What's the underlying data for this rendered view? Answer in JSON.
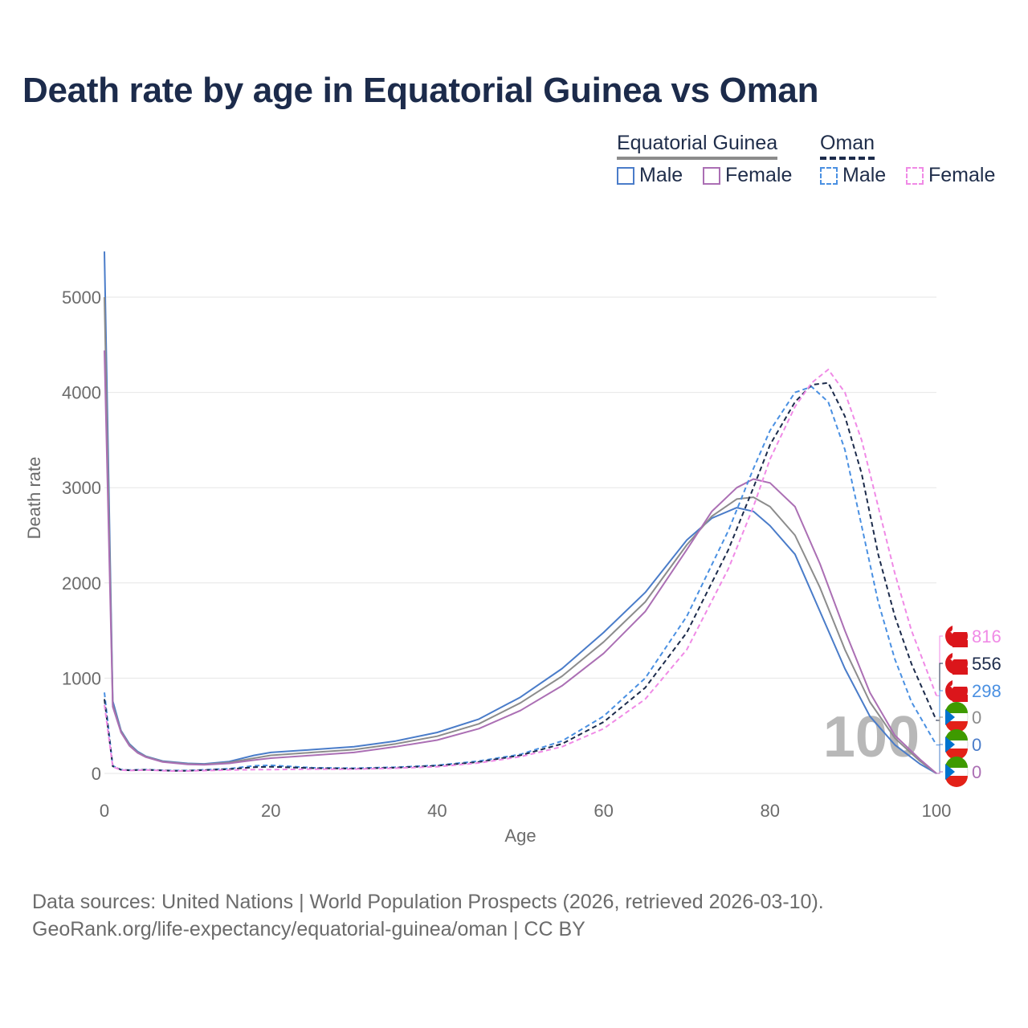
{
  "title": "Death rate by age in Equatorial Guinea vs Oman",
  "legend": {
    "groups": [
      {
        "name": "Equatorial Guinea",
        "style": "solid",
        "color": "#8c8c8c"
      },
      {
        "name": "Oman",
        "style": "dashed",
        "color": "#1c2b4b"
      }
    ],
    "items": [
      {
        "label": "Male",
        "color": "#4a7cc9",
        "style": "solid"
      },
      {
        "label": "Female",
        "color": "#ab6fb4",
        "style": "solid"
      },
      {
        "label": "Male",
        "color": "#4a90e2",
        "style": "dashed"
      },
      {
        "label": "Female",
        "color": "#f08ae6",
        "style": "dashed"
      }
    ]
  },
  "source_line1": "Data sources: United Nations | World Population Prospects (2026, retrieved 2026-03-10).",
  "source_line2": "GeoRank.org/life-expectancy/equatorial-guinea/oman | CC BY",
  "chart_data": {
    "type": "line",
    "xlabel": "Age",
    "ylabel": "Death rate",
    "xlim": [
      0,
      100
    ],
    "ylim": [
      0,
      5500
    ],
    "xticks": [
      0,
      20,
      40,
      60,
      80,
      100
    ],
    "yticks": [
      0,
      1000,
      2000,
      3000,
      4000,
      5000
    ],
    "watermark": "100",
    "series": [
      {
        "name": "Equatorial Guinea Male",
        "color": "#4a7cc9",
        "dash": false,
        "points": [
          [
            0,
            5480
          ],
          [
            1,
            760
          ],
          [
            2,
            450
          ],
          [
            3,
            310
          ],
          [
            4,
            230
          ],
          [
            5,
            180
          ],
          [
            7,
            130
          ],
          [
            10,
            105
          ],
          [
            12,
            100
          ],
          [
            15,
            125
          ],
          [
            18,
            190
          ],
          [
            20,
            220
          ],
          [
            25,
            250
          ],
          [
            30,
            280
          ],
          [
            35,
            340
          ],
          [
            40,
            430
          ],
          [
            45,
            570
          ],
          [
            50,
            800
          ],
          [
            55,
            1100
          ],
          [
            60,
            1480
          ],
          [
            65,
            1900
          ],
          [
            70,
            2450
          ],
          [
            73,
            2680
          ],
          [
            76,
            2790
          ],
          [
            78,
            2750
          ],
          [
            80,
            2600
          ],
          [
            83,
            2300
          ],
          [
            86,
            1700
          ],
          [
            89,
            1100
          ],
          [
            92,
            600
          ],
          [
            95,
            300
          ],
          [
            98,
            100
          ],
          [
            100,
            0
          ]
        ]
      },
      {
        "name": "Equatorial Guinea Total",
        "color": "#8c8c8c",
        "dash": false,
        "points": [
          [
            0,
            5000
          ],
          [
            1,
            720
          ],
          [
            2,
            440
          ],
          [
            3,
            300
          ],
          [
            4,
            220
          ],
          [
            5,
            175
          ],
          [
            7,
            125
          ],
          [
            10,
            100
          ],
          [
            12,
            95
          ],
          [
            15,
            115
          ],
          [
            18,
            160
          ],
          [
            20,
            190
          ],
          [
            25,
            220
          ],
          [
            30,
            250
          ],
          [
            35,
            310
          ],
          [
            40,
            390
          ],
          [
            45,
            520
          ],
          [
            50,
            740
          ],
          [
            55,
            1020
          ],
          [
            60,
            1380
          ],
          [
            65,
            1800
          ],
          [
            70,
            2400
          ],
          [
            73,
            2700
          ],
          [
            76,
            2880
          ],
          [
            78,
            2900
          ],
          [
            80,
            2800
          ],
          [
            83,
            2500
          ],
          [
            86,
            1950
          ],
          [
            89,
            1300
          ],
          [
            92,
            750
          ],
          [
            95,
            370
          ],
          [
            98,
            130
          ],
          [
            100,
            0
          ]
        ]
      },
      {
        "name": "Equatorial Guinea Female",
        "color": "#ab6fb4",
        "dash": false,
        "points": [
          [
            0,
            4440
          ],
          [
            1,
            700
          ],
          [
            2,
            430
          ],
          [
            3,
            290
          ],
          [
            4,
            215
          ],
          [
            5,
            170
          ],
          [
            7,
            120
          ],
          [
            10,
            95
          ],
          [
            12,
            90
          ],
          [
            15,
            105
          ],
          [
            18,
            140
          ],
          [
            20,
            160
          ],
          [
            25,
            190
          ],
          [
            30,
            220
          ],
          [
            35,
            280
          ],
          [
            40,
            350
          ],
          [
            45,
            470
          ],
          [
            50,
            660
          ],
          [
            55,
            920
          ],
          [
            60,
            1260
          ],
          [
            65,
            1700
          ],
          [
            70,
            2350
          ],
          [
            73,
            2750
          ],
          [
            76,
            3000
          ],
          [
            78,
            3090
          ],
          [
            80,
            3050
          ],
          [
            83,
            2800
          ],
          [
            86,
            2200
          ],
          [
            89,
            1500
          ],
          [
            92,
            850
          ],
          [
            95,
            400
          ],
          [
            98,
            150
          ],
          [
            100,
            0
          ]
        ]
      },
      {
        "name": "Oman Male",
        "color": "#4a90e2",
        "dash": true,
        "points": [
          [
            0,
            850
          ],
          [
            1,
            80
          ],
          [
            2,
            40
          ],
          [
            3,
            35
          ],
          [
            5,
            40
          ],
          [
            8,
            30
          ],
          [
            10,
            30
          ],
          [
            15,
            50
          ],
          [
            18,
            80
          ],
          [
            20,
            85
          ],
          [
            25,
            60
          ],
          [
            30,
            55
          ],
          [
            35,
            65
          ],
          [
            40,
            85
          ],
          [
            45,
            130
          ],
          [
            50,
            200
          ],
          [
            55,
            340
          ],
          [
            60,
            600
          ],
          [
            65,
            1000
          ],
          [
            70,
            1650
          ],
          [
            75,
            2550
          ],
          [
            78,
            3200
          ],
          [
            80,
            3600
          ],
          [
            83,
            4000
          ],
          [
            85,
            4060
          ],
          [
            87,
            3900
          ],
          [
            89,
            3400
          ],
          [
            91,
            2600
          ],
          [
            93,
            1800
          ],
          [
            95,
            1200
          ],
          [
            97,
            750
          ],
          [
            100,
            298
          ]
        ]
      },
      {
        "name": "Oman Total",
        "color": "#1c2b4b",
        "dash": true,
        "points": [
          [
            0,
            780
          ],
          [
            1,
            75
          ],
          [
            2,
            38
          ],
          [
            3,
            33
          ],
          [
            5,
            38
          ],
          [
            8,
            28
          ],
          [
            10,
            28
          ],
          [
            15,
            45
          ],
          [
            18,
            65
          ],
          [
            20,
            70
          ],
          [
            25,
            55
          ],
          [
            30,
            50
          ],
          [
            35,
            60
          ],
          [
            40,
            80
          ],
          [
            45,
            120
          ],
          [
            50,
            190
          ],
          [
            55,
            310
          ],
          [
            60,
            540
          ],
          [
            65,
            900
          ],
          [
            70,
            1480
          ],
          [
            75,
            2350
          ],
          [
            78,
            3000
          ],
          [
            80,
            3450
          ],
          [
            83,
            3900
          ],
          [
            85,
            4080
          ],
          [
            87,
            4100
          ],
          [
            89,
            3750
          ],
          [
            91,
            3150
          ],
          [
            93,
            2300
          ],
          [
            95,
            1650
          ],
          [
            97,
            1150
          ],
          [
            100,
            556
          ]
        ]
      },
      {
        "name": "Oman Female",
        "color": "#f08ae6",
        "dash": true,
        "points": [
          [
            0,
            720
          ],
          [
            1,
            70
          ],
          [
            2,
            35
          ],
          [
            3,
            30
          ],
          [
            5,
            35
          ],
          [
            8,
            25
          ],
          [
            10,
            25
          ],
          [
            15,
            35
          ],
          [
            18,
            40
          ],
          [
            20,
            40
          ],
          [
            25,
            45
          ],
          [
            30,
            45
          ],
          [
            35,
            55
          ],
          [
            40,
            70
          ],
          [
            45,
            110
          ],
          [
            50,
            175
          ],
          [
            55,
            280
          ],
          [
            60,
            470
          ],
          [
            65,
            780
          ],
          [
            70,
            1300
          ],
          [
            75,
            2150
          ],
          [
            78,
            2800
          ],
          [
            80,
            3300
          ],
          [
            83,
            3850
          ],
          [
            85,
            4100
          ],
          [
            87,
            4240
          ],
          [
            89,
            4000
          ],
          [
            91,
            3500
          ],
          [
            93,
            2800
          ],
          [
            95,
            2100
          ],
          [
            97,
            1500
          ],
          [
            100,
            816
          ]
        ]
      }
    ],
    "end_labels": [
      {
        "value": "816",
        "color": "#f08ae6",
        "flag": "Oman"
      },
      {
        "value": "556",
        "color": "#1c2b4b",
        "flag": "Oman"
      },
      {
        "value": "298",
        "color": "#4a90e2",
        "flag": "Oman"
      },
      {
        "value": "0",
        "color": "#8c8c8c",
        "flag": "Equatorial Guinea"
      },
      {
        "value": "0",
        "color": "#4a7cc9",
        "flag": "Equatorial Guinea"
      },
      {
        "value": "0",
        "color": "#ab6fb4",
        "flag": "Equatorial Guinea"
      }
    ]
  }
}
